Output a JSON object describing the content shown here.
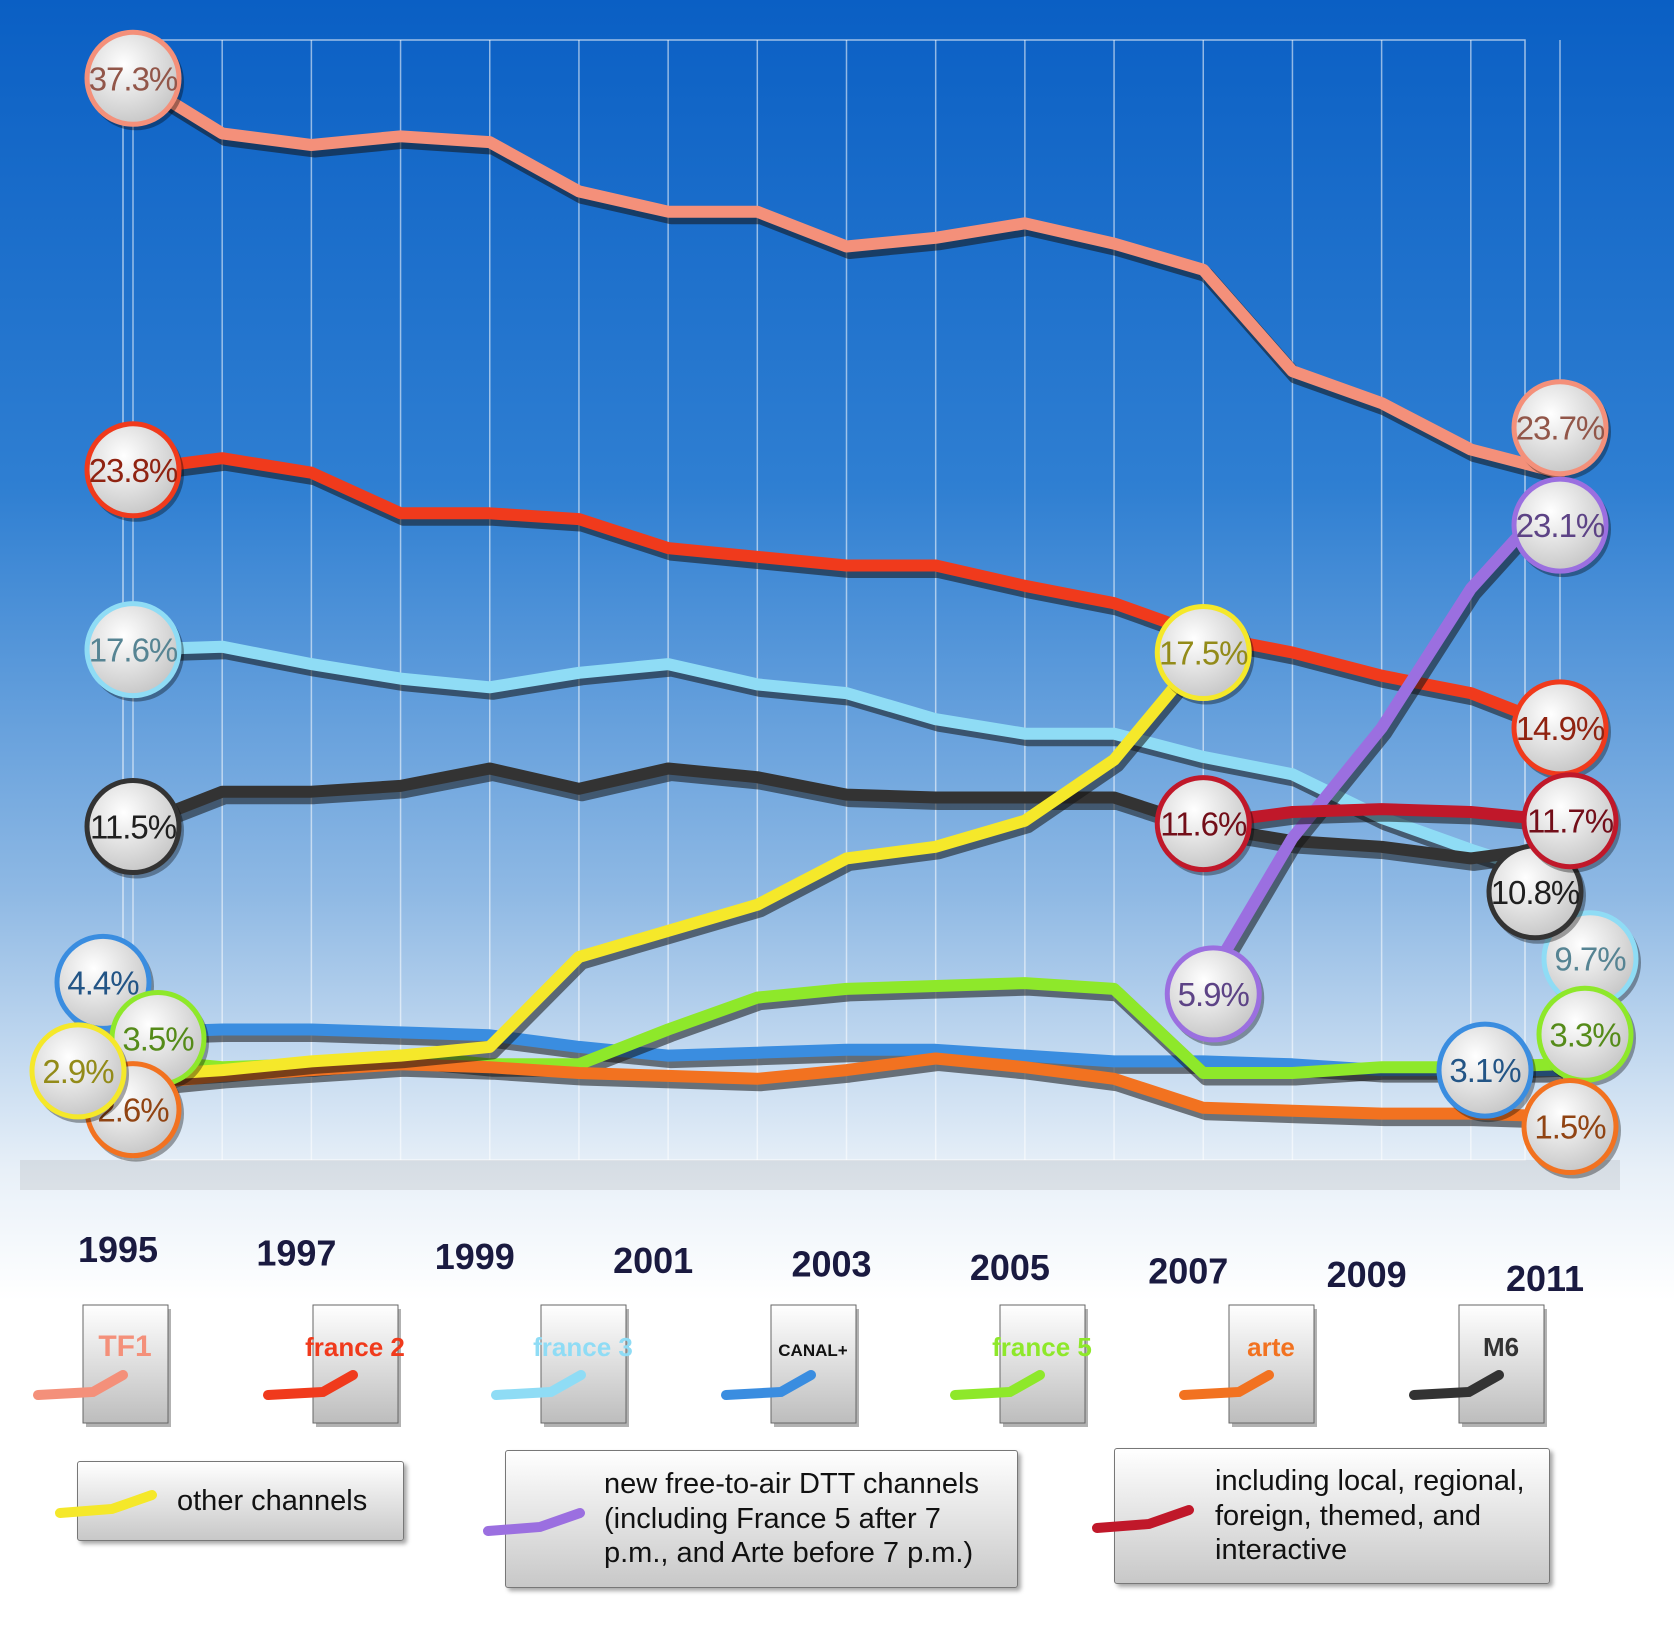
{
  "chart_data": {
    "type": "line",
    "categories": [
      "1995",
      null,
      "1997",
      null,
      "1999",
      null,
      "2001",
      null,
      "2003",
      null,
      "2005",
      null,
      "2007",
      null,
      "2009",
      null,
      "2011"
    ],
    "ylim": [
      0,
      40
    ],
    "series": [
      {
        "name": "TF1",
        "color": "#f4907a",
        "values": [
          37.3,
          35.4,
          35.0,
          35.3,
          35.1,
          33.4,
          32.7,
          32.7,
          31.5,
          31.8,
          32.3,
          31.6,
          30.7,
          27.2,
          26.1,
          24.5,
          23.7
        ],
        "value_labels": [
          "37.3%",
          null,
          null,
          null,
          null,
          null,
          null,
          null,
          null,
          null,
          null,
          null,
          null,
          null,
          null,
          null,
          "23.7%"
        ]
      },
      {
        "name": "france 2",
        "color": "#f03a1c",
        "values": [
          23.8,
          24.2,
          23.7,
          22.3,
          22.3,
          22.1,
          21.1,
          20.8,
          20.5,
          20.5,
          19.8,
          19.2,
          18.1,
          17.5,
          16.7,
          16.1,
          14.9
        ],
        "value_labels": [
          "23.8%",
          null,
          null,
          null,
          null,
          null,
          null,
          null,
          null,
          null,
          null,
          null,
          null,
          null,
          null,
          null,
          "14.9%"
        ]
      },
      {
        "name": "france 3",
        "color": "#8fdcf5",
        "values": [
          17.6,
          17.7,
          17.1,
          16.6,
          16.3,
          16.8,
          17.1,
          16.4,
          16.1,
          15.2,
          14.7,
          14.7,
          13.9,
          13.3,
          11.8,
          10.7,
          9.7
        ],
        "value_labels": [
          "17.6%",
          null,
          null,
          null,
          null,
          null,
          null,
          null,
          null,
          null,
          null,
          null,
          null,
          null,
          null,
          null,
          "9.7%"
        ]
      },
      {
        "name": "CANAL+",
        "color": "#3a8de0",
        "values": [
          4.4,
          4.5,
          4.5,
          4.4,
          4.3,
          3.9,
          3.6,
          3.7,
          3.8,
          3.8,
          3.6,
          3.4,
          3.4,
          3.3,
          3.1,
          3.1,
          3.1
        ],
        "value_labels": [
          "4.4%",
          null,
          null,
          null,
          null,
          null,
          null,
          null,
          null,
          null,
          null,
          null,
          null,
          null,
          null,
          null,
          "3.1%"
        ]
      },
      {
        "name": "france 5",
        "color": "#8ee82a",
        "values": [
          3.5,
          3.2,
          3.3,
          3.6,
          3.3,
          3.3,
          4.5,
          5.6,
          5.9,
          6.0,
          6.1,
          5.9,
          3.0,
          3.0,
          3.2,
          3.2,
          3.3
        ],
        "value_labels": [
          "3.5%",
          null,
          null,
          null,
          null,
          null,
          null,
          null,
          null,
          null,
          null,
          null,
          null,
          null,
          null,
          null,
          "3.3%"
        ]
      },
      {
        "name": "arte",
        "color": "#f27220",
        "values": [
          2.6,
          2.9,
          3.1,
          3.3,
          3.2,
          3.0,
          2.9,
          2.8,
          3.1,
          3.5,
          3.2,
          2.8,
          1.8,
          1.7,
          1.6,
          1.6,
          1.5
        ],
        "value_labels": [
          "2.6%",
          null,
          null,
          null,
          null,
          null,
          null,
          null,
          null,
          null,
          null,
          null,
          null,
          null,
          null,
          null,
          "1.5%"
        ]
      },
      {
        "name": "M6",
        "color": "#333333",
        "values": [
          11.5,
          12.7,
          12.7,
          12.9,
          13.5,
          12.8,
          13.5,
          13.2,
          12.6,
          12.5,
          12.5,
          12.5,
          11.5,
          11.0,
          10.8,
          10.4,
          10.8
        ],
        "value_labels": [
          "11.5%",
          null,
          null,
          null,
          null,
          null,
          null,
          null,
          null,
          null,
          null,
          null,
          null,
          null,
          null,
          null,
          "10.8%"
        ]
      },
      {
        "name": "other channels",
        "color": "#f5e82a",
        "values": [
          2.9,
          3.1,
          3.4,
          3.6,
          3.9,
          7.0,
          7.9,
          8.8,
          10.4,
          10.8,
          11.7,
          13.8,
          17.5,
          null,
          null,
          null,
          null
        ],
        "value_labels": [
          "2.9%",
          null,
          null,
          null,
          null,
          null,
          null,
          null,
          null,
          null,
          null,
          null,
          "17.5%",
          null,
          null,
          null,
          null
        ]
      },
      {
        "name": "new free-to-air DTT channels (including France 5 after 7 p.m., and Arte before 7 p.m.)",
        "color": "#9b6fe0",
        "values": [
          null,
          null,
          null,
          null,
          null,
          null,
          null,
          null,
          null,
          null,
          null,
          null,
          5.9,
          11.1,
          14.9,
          19.7,
          23.1
        ],
        "value_labels": [
          null,
          null,
          null,
          null,
          null,
          null,
          null,
          null,
          null,
          null,
          null,
          null,
          "5.9%",
          null,
          null,
          null,
          "23.1%"
        ]
      },
      {
        "name": "including local, regional, foreign, themed, and interactive",
        "color": "#c0182a",
        "values": [
          null,
          null,
          null,
          null,
          null,
          null,
          null,
          null,
          null,
          null,
          null,
          null,
          11.6,
          12.0,
          12.1,
          12.0,
          11.7
        ],
        "value_labels": [
          null,
          null,
          null,
          null,
          null,
          null,
          null,
          null,
          null,
          null,
          null,
          null,
          "11.6%",
          null,
          null,
          null,
          "11.7%"
        ]
      }
    ]
  }
}
